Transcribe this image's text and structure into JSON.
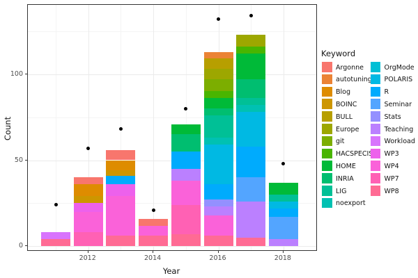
{
  "axes": {
    "x_label": "Year",
    "y_label": "Count",
    "x_ticks": [
      2012,
      2014,
      2016,
      2018
    ],
    "y_ticks": [
      0,
      50,
      100
    ],
    "y_minor_gridlines": [
      25,
      75,
      125
    ],
    "x_minor_gridline_years": [
      2011,
      2013,
      2015,
      2017
    ],
    "y_range": [
      0,
      140
    ]
  },
  "legend": {
    "title": "Keyword",
    "columns": 2,
    "items": [
      {
        "label": "Argonne",
        "color": "#F8766D"
      },
      {
        "label": "autotuning",
        "color": "#EB8335"
      },
      {
        "label": "Blog",
        "color": "#DE8C00"
      },
      {
        "label": "BOINC",
        "color": "#CD9600"
      },
      {
        "label": "BULL",
        "color": "#B79F00"
      },
      {
        "label": "Europe",
        "color": "#9DA700"
      },
      {
        "label": "git",
        "color": "#7CAE00"
      },
      {
        "label": "HACSPECIS",
        "color": "#49B500"
      },
      {
        "label": "HOME",
        "color": "#00BA38"
      },
      {
        "label": "INRIA",
        "color": "#00BE70"
      },
      {
        "label": "LIG",
        "color": "#00C096"
      },
      {
        "label": "noexport",
        "color": "#00C1B2"
      },
      {
        "label": "OrgMode",
        "color": "#00BFD5"
      },
      {
        "label": "POLARIS",
        "color": "#00B9E3"
      },
      {
        "label": "R",
        "color": "#00ABFD"
      },
      {
        "label": "Seminar",
        "color": "#53A5FF"
      },
      {
        "label": "Stats",
        "color": "#9490FF"
      },
      {
        "label": "Teaching",
        "color": "#BB80FF"
      },
      {
        "label": "Workload",
        "color": "#D874FD"
      },
      {
        "label": "WP3",
        "color": "#ED61EC"
      },
      {
        "label": "WP4",
        "color": "#FA62D9"
      },
      {
        "label": "WP7",
        "color": "#FF61B4"
      },
      {
        "label": "WP8",
        "color": "#FF6B94"
      }
    ]
  },
  "chart_data": {
    "type": "bar",
    "stacked": true,
    "title": "",
    "xlabel": "Year",
    "ylabel": "Count",
    "ylim": [
      0,
      140
    ],
    "categories": [
      2011,
      2012,
      2013,
      2014,
      2015,
      2016,
      2017,
      2018
    ],
    "bars": [
      {
        "year": 2011,
        "total": 8,
        "segments_bottom_to_top": [
          {
            "keyword": "WP8",
            "value": 4
          },
          {
            "keyword": "Workload",
            "value": 4
          }
        ]
      },
      {
        "year": 2012,
        "total": 40,
        "segments_bottom_to_top": [
          {
            "keyword": "WP7",
            "value": 8
          },
          {
            "keyword": "WP4",
            "value": 12
          },
          {
            "keyword": "WP3",
            "value": 5
          },
          {
            "keyword": "BOINC",
            "value": 4
          },
          {
            "keyword": "Blog",
            "value": 7
          },
          {
            "keyword": "Argonne",
            "value": 4
          }
        ]
      },
      {
        "year": 2013,
        "total": 56,
        "segments_bottom_to_top": [
          {
            "keyword": "WP8",
            "value": 6
          },
          {
            "keyword": "WP4",
            "value": 23
          },
          {
            "keyword": "WP3",
            "value": 7
          },
          {
            "keyword": "R",
            "value": 5
          },
          {
            "keyword": "BOINC",
            "value": 3
          },
          {
            "keyword": "Blog",
            "value": 6
          },
          {
            "keyword": "Argonne",
            "value": 6
          }
        ]
      },
      {
        "year": 2014,
        "total": 16,
        "segments_bottom_to_top": [
          {
            "keyword": "WP8",
            "value": 6
          },
          {
            "keyword": "WP4",
            "value": 6
          },
          {
            "keyword": "Argonne",
            "value": 4
          }
        ]
      },
      {
        "year": 2015,
        "total": 71,
        "segments_bottom_to_top": [
          {
            "keyword": "WP8",
            "value": 7
          },
          {
            "keyword": "WP7",
            "value": 17
          },
          {
            "keyword": "WP4",
            "value": 14
          },
          {
            "keyword": "Teaching",
            "value": 7
          },
          {
            "keyword": "R",
            "value": 10
          },
          {
            "keyword": "INRIA",
            "value": 10
          },
          {
            "keyword": "HOME",
            "value": 6
          }
        ]
      },
      {
        "year": 2016,
        "total": 113,
        "segments_bottom_to_top": [
          {
            "keyword": "WP8",
            "value": 6
          },
          {
            "keyword": "WP4",
            "value": 12
          },
          {
            "keyword": "Teaching",
            "value": 5
          },
          {
            "keyword": "Stats",
            "value": 4
          },
          {
            "keyword": "R",
            "value": 9
          },
          {
            "keyword": "POLARIS",
            "value": 23
          },
          {
            "keyword": "noexport",
            "value": 4
          },
          {
            "keyword": "LIG",
            "value": 13
          },
          {
            "keyword": "INRIA",
            "value": 4
          },
          {
            "keyword": "HOME",
            "value": 6
          },
          {
            "keyword": "HACSPECIS",
            "value": 4
          },
          {
            "keyword": "git",
            "value": 7
          },
          {
            "keyword": "Europe",
            "value": 6
          },
          {
            "keyword": "BULL",
            "value": 6
          },
          {
            "keyword": "autotuning",
            "value": 4
          }
        ]
      },
      {
        "year": 2017,
        "total": 123,
        "segments_bottom_to_top": [
          {
            "keyword": "WP8",
            "value": 5
          },
          {
            "keyword": "Teaching",
            "value": 21
          },
          {
            "keyword": "Seminar",
            "value": 14
          },
          {
            "keyword": "R",
            "value": 18
          },
          {
            "keyword": "POLARIS",
            "value": 20
          },
          {
            "keyword": "noexport",
            "value": 4
          },
          {
            "keyword": "LIG",
            "value": 4
          },
          {
            "keyword": "INRIA",
            "value": 11
          },
          {
            "keyword": "HOME",
            "value": 15
          },
          {
            "keyword": "HACSPECIS",
            "value": 4
          },
          {
            "keyword": "Europe",
            "value": 7
          }
        ]
      },
      {
        "year": 2018,
        "total": 37,
        "segments_bottom_to_top": [
          {
            "keyword": "Teaching",
            "value": 4
          },
          {
            "keyword": "Seminar",
            "value": 13
          },
          {
            "keyword": "R",
            "value": 5
          },
          {
            "keyword": "POLARIS",
            "value": 4
          },
          {
            "keyword": "LIG",
            "value": 4
          },
          {
            "keyword": "HOME",
            "value": 7
          }
        ]
      }
    ],
    "points": [
      {
        "year": 2011,
        "value": 24
      },
      {
        "year": 2012,
        "value": 57
      },
      {
        "year": 2013,
        "value": 68
      },
      {
        "year": 2014,
        "value": 21
      },
      {
        "year": 2015,
        "value": 80
      },
      {
        "year": 2016,
        "value": 132
      },
      {
        "year": 2017,
        "value": 134
      },
      {
        "year": 2018,
        "value": 48
      }
    ],
    "legend_position": "right",
    "grid": true
  }
}
